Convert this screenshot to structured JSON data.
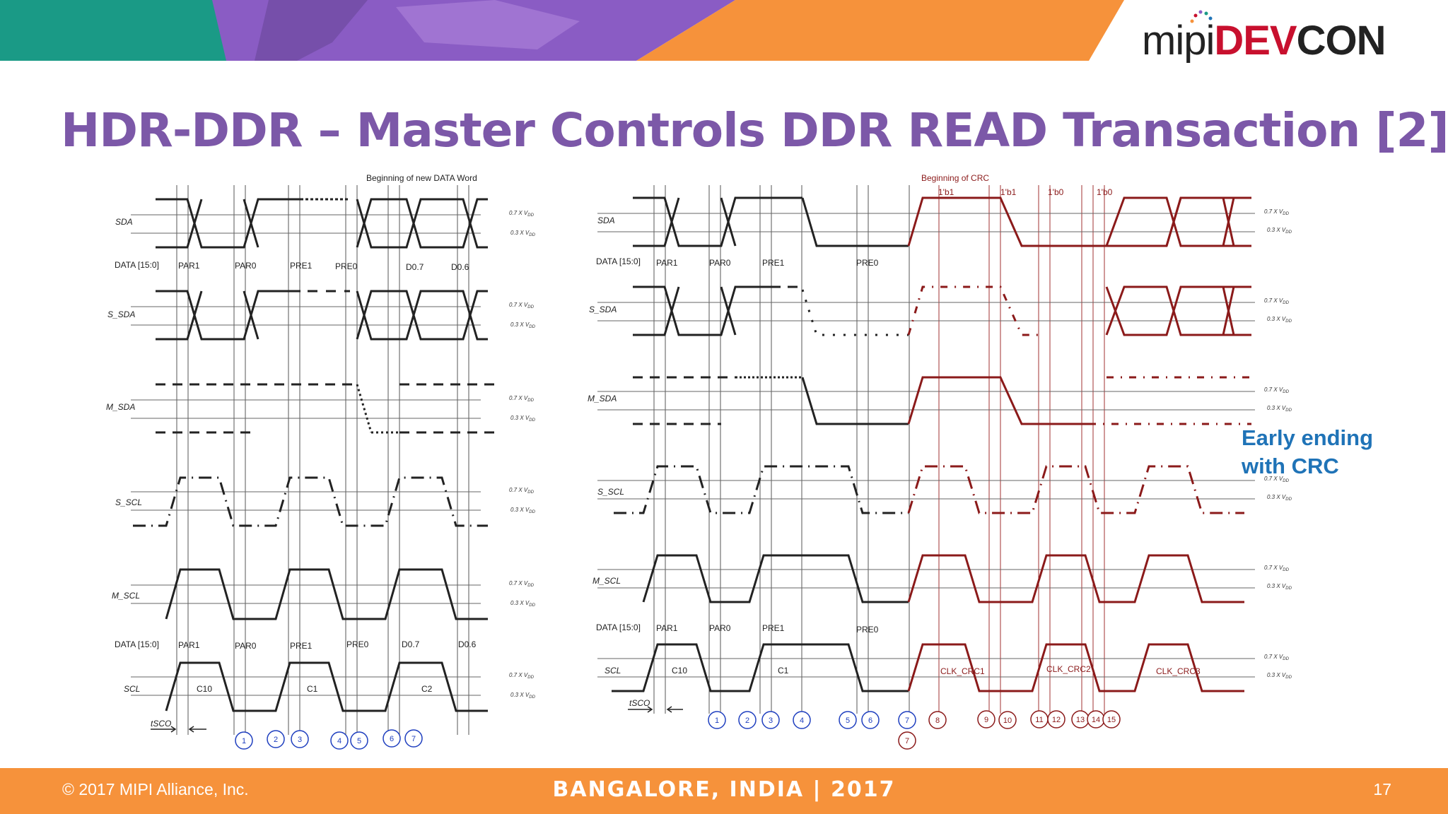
{
  "brand": {
    "logo_mipi": "mipi",
    "logo_dev": "DEV",
    "logo_con": "CON",
    "colors": {
      "purple": "#7c58a8",
      "orange": "#f6923b",
      "teal": "#1a9a86",
      "dark_red": "#8b1a1a",
      "blue": "#1f3fbf",
      "accent_blue": "#1f73b7"
    }
  },
  "slide": {
    "title": "HDR-DDR – Master Controls DDR READ Transaction [2]",
    "note_line1": "Early ending",
    "note_line2": "with CRC",
    "footer_left": "© 2017 MIPI Alliance, Inc.",
    "footer_center": "BANGALORE, INDIA | 2017",
    "page_number": "17"
  },
  "left_diagram": {
    "top_label": "Beginning of new DATA Word",
    "signals": [
      "SDA",
      "S_SDA",
      "M_SDA",
      "S_SCL",
      "M_SCL",
      "SCL"
    ],
    "data_label_top": "DATA [15:0]",
    "data_words_top": [
      "PAR1",
      "PAR0",
      "PRE1",
      "PRE0",
      "D0.7",
      "D0.6"
    ],
    "data_label_bottom": "DATA [15:0]",
    "data_words_bottom": [
      "PAR1",
      "PAR0",
      "PRE1",
      "PRE0",
      "D0.7",
      "D0.6"
    ],
    "clock_labels": [
      "C10",
      "C1",
      "C2"
    ],
    "tsco": "tSCO",
    "markers": [
      "1",
      "2",
      "3",
      "4",
      "5",
      "6",
      "7"
    ],
    "v_high": "0.7 X V",
    "v_low": "0.3 X V",
    "v_sub": "DD"
  },
  "right_diagram": {
    "top_label": "Beginning of CRC",
    "bit_labels": [
      "1'b1",
      "1'b1",
      "1'b0",
      "1'b0"
    ],
    "signals": [
      "SDA",
      "S_SDA",
      "M_SDA",
      "S_SCL",
      "M_SCL",
      "SCL"
    ],
    "data_label_top": "DATA [15:0]",
    "data_words_top": [
      "PAR1",
      "PAR0",
      "PRE1",
      "PRE0"
    ],
    "data_label_bottom": "DATA [15:0]",
    "data_words_bottom": [
      "PAR1",
      "PAR0",
      "PRE1",
      "PRE0"
    ],
    "clock_labels": [
      "C10",
      "C1",
      "CLK_CRC1",
      "CLK_CRC2",
      "CLK_CRC3"
    ],
    "tsco": "tSCO",
    "markers_blue": [
      "1",
      "2",
      "3",
      "4",
      "5",
      "6",
      "7"
    ],
    "markers_red": [
      "8",
      "9",
      "10",
      "11",
      "12",
      "13",
      "14",
      "15",
      "7"
    ],
    "v_high": "0.7 X V",
    "v_low": "0.3 X V",
    "v_sub": "DD"
  }
}
